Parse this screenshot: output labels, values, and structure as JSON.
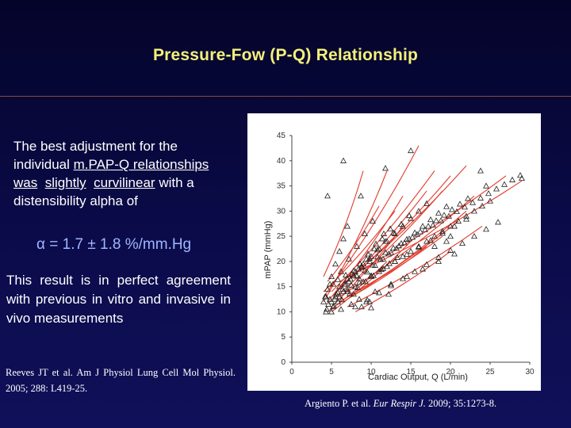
{
  "slide": {
    "title": "Pressure-Fow (P-Q) Relationship",
    "para1": {
      "l1": "The best adjustment for the",
      "l2a": "individual ",
      "l2b": "m.PAP-Q relationships",
      "l3a": "was",
      "l3b": "slightly",
      "l3c": "curvilinear",
      "l3d": " with a",
      "l4": "distensibility alpha of"
    },
    "alpha_formula": "α = 1.7 ± 1.8 %/mm.Hg",
    "para2": "This result is in perfect agreement with previous in vitro and invasive in vivo measurements",
    "ref_left": "Reeves JT et al. Am J Physiol Lung Cell Mol Physiol. 2005; 288: L419-25.",
    "ref_right_a": "Argiento P. et al. ",
    "ref_right_journal": "Eur Respir J.",
    "ref_right_b": " 2009; 35:1273-8."
  },
  "colors": {
    "title": "#f4f07a",
    "alpha": "#9fb6ff",
    "line": "#e23a2a",
    "marker": "#222222"
  },
  "chart_data": {
    "type": "scatter",
    "xlabel": "Cardiac Output, Q (L/min)",
    "ylabel": "mPAP (mmHg)",
    "xlim": [
      0,
      30
    ],
    "ylim": [
      0,
      45
    ],
    "xticks": [
      "0",
      "5",
      "10",
      "15",
      "20",
      "25",
      "30"
    ],
    "yticks": [
      "0",
      "5",
      "10",
      "15",
      "20",
      "25",
      "30",
      "35",
      "40",
      "45"
    ],
    "marker": "open-triangle",
    "fit_lines": [
      {
        "x": [
          4.0,
          12.0
        ],
        "y": [
          12,
          38
        ]
      },
      {
        "x": [
          4.0,
          16.0
        ],
        "y": [
          13,
          43
        ]
      },
      {
        "x": [
          4.5,
          14.0
        ],
        "y": [
          12,
          33
        ]
      },
      {
        "x": [
          4.5,
          11.0
        ],
        "y": [
          16,
          31
        ]
      },
      {
        "x": [
          4.0,
          13.0
        ],
        "y": [
          14,
          30
        ]
      },
      {
        "x": [
          5.0,
          18.0
        ],
        "y": [
          14,
          38
        ]
      },
      {
        "x": [
          5.0,
          17.0
        ],
        "y": [
          13,
          34
        ]
      },
      {
        "x": [
          4.0,
          9.0
        ],
        "y": [
          17,
          38
        ]
      },
      {
        "x": [
          5.0,
          14.0
        ],
        "y": [
          11,
          27
        ]
      },
      {
        "x": [
          5.5,
          20.0
        ],
        "y": [
          14,
          37
        ]
      },
      {
        "x": [
          5.5,
          19.0
        ],
        "y": [
          13,
          34
        ]
      },
      {
        "x": [
          6.0,
          22.0
        ],
        "y": [
          15,
          39
        ]
      },
      {
        "x": [
          6.0,
          23.0
        ],
        "y": [
          13,
          33
        ]
      },
      {
        "x": [
          6.0,
          27.0
        ],
        "y": [
          16,
          37
        ]
      },
      {
        "x": [
          6.0,
          21.0
        ],
        "y": [
          12,
          28
        ]
      },
      {
        "x": [
          6.5,
          22.0
        ],
        "y": [
          12,
          30
        ]
      },
      {
        "x": [
          7.0,
          29.0
        ],
        "y": [
          17,
          36
        ]
      },
      {
        "x": [
          7.0,
          24.0
        ],
        "y": [
          11,
          27
        ]
      },
      {
        "x": [
          8.0,
          20.0
        ],
        "y": [
          10,
          22
        ]
      },
      {
        "x": [
          4.5,
          12.0
        ],
        "y": [
          10,
          20
        ]
      },
      {
        "x": [
          5.0,
          15.0
        ],
        "y": [
          10,
          24
        ]
      },
      {
        "x": [
          7.5,
          17.0
        ],
        "y": [
          13,
          23
        ]
      },
      {
        "x": [
          8.0,
          19.0
        ],
        "y": [
          14,
          25
        ]
      }
    ],
    "points_x": [
      4.0,
      4.5,
      5.0,
      5.5,
      6.0,
      6.5,
      7.0,
      4.2,
      5.2,
      6.2,
      7.2,
      8.2,
      9.2,
      10.2,
      4.6,
      5.6,
      6.6,
      7.6,
      8.6,
      9.6,
      10.6,
      11.6,
      4.4,
      5.4,
      6.4,
      7.4,
      8.4,
      9.4,
      10.4,
      11.4,
      12.4,
      5.8,
      6.8,
      7.8,
      8.8,
      9.8,
      10.8,
      11.8,
      12.8,
      13.8,
      14.8,
      6.0,
      7.0,
      8.0,
      9.0,
      10.0,
      11.0,
      12.0,
      13.0,
      14.0,
      15.0,
      16.0,
      17.0,
      6.5,
      7.5,
      8.5,
      9.5,
      10.5,
      11.5,
      12.5,
      13.5,
      14.5,
      15.5,
      16.5,
      17.5,
      18.5,
      19.5,
      7.2,
      8.2,
      9.2,
      10.2,
      11.2,
      12.2,
      13.2,
      14.2,
      15.2,
      16.2,
      17.2,
      18.2,
      19.2,
      20.2,
      21.2,
      22.2,
      5.0,
      6.0,
      7.0,
      8.0,
      9.0,
      10.0,
      11.0,
      12.0,
      13.0,
      14.0,
      15.0,
      16.0,
      17.0,
      18.0,
      19.0,
      20.0,
      21.0,
      22.0,
      23.0,
      24.0,
      25.0,
      4.8,
      5.8,
      6.8,
      7.8,
      8.8,
      9.8,
      10.8,
      11.8,
      12.8,
      13.8,
      14.8,
      15.8,
      16.8,
      17.8,
      18.8,
      19.8,
      20.8,
      21.8,
      22.8,
      23.8,
      24.8,
      25.8,
      26.8,
      27.8,
      28.8,
      8.0,
      9.5,
      11.0,
      12.5,
      14.0,
      15.5,
      17.0,
      18.5,
      20.0,
      21.5,
      23.0,
      24.5,
      26.0,
      4.3,
      5.3,
      6.3,
      7.3,
      8.3,
      9.3,
      10.3,
      11.3,
      12.3,
      13.3,
      5.5,
      7.0,
      8.5,
      10.0,
      11.5,
      13.0,
      14.5,
      16.0,
      17.5,
      19.0,
      20.5,
      22.0,
      8.5,
      10.5,
      12.5,
      14.5,
      16.5,
      18.5,
      20.5,
      15.0,
      4.5,
      8.7,
      23.8,
      6.5,
      11.8,
      29.0,
      24.5,
      19.5,
      5.2,
      5.0,
      4.3,
      9.4,
      10.0,
      6.2,
      7.5,
      8.8,
      12.2,
      4.8,
      18.0,
      20.0,
      5.8,
      7.8,
      9.8
    ],
    "points_y": [
      12.0,
      14.5,
      17.0,
      19.5,
      22.0,
      24.5,
      27.0,
      13.0,
      15.5,
      18.0,
      20.5,
      23.0,
      25.5,
      28.0,
      11.5,
      13.5,
      15.5,
      17.5,
      19.5,
      21.5,
      23.5,
      25.5,
      10.5,
      12.5,
      14.5,
      16.5,
      18.5,
      20.5,
      22.5,
      24.5,
      26.5,
      13.8,
      15.5,
      17.2,
      18.9,
      20.6,
      22.3,
      24.0,
      25.7,
      27.4,
      29.1,
      15.0,
      16.5,
      18.0,
      19.5,
      21.0,
      22.5,
      24.0,
      25.5,
      27.0,
      28.5,
      30.0,
      31.5,
      14.0,
      15.3,
      16.6,
      17.9,
      19.2,
      20.5,
      21.8,
      23.1,
      24.4,
      25.7,
      27.0,
      28.3,
      29.6,
      30.9,
      16.0,
      17.1,
      18.2,
      19.3,
      20.4,
      21.5,
      22.6,
      23.7,
      24.8,
      25.9,
      27.0,
      28.1,
      29.2,
      30.3,
      31.4,
      32.5,
      12.0,
      13.0,
      14.0,
      15.0,
      16.0,
      17.0,
      18.0,
      19.0,
      20.0,
      21.0,
      22.0,
      23.0,
      24.0,
      25.0,
      26.0,
      27.0,
      28.0,
      29.0,
      30.0,
      31.0,
      32.0,
      15.5,
      16.4,
      17.3,
      18.2,
      19.1,
      20.0,
      20.9,
      21.8,
      22.7,
      23.6,
      24.5,
      25.4,
      26.3,
      27.2,
      28.1,
      29.0,
      29.9,
      30.8,
      31.7,
      32.6,
      33.5,
      34.4,
      35.3,
      36.2,
      37.1,
      11.0,
      12.4,
      13.8,
      15.2,
      16.6,
      18.0,
      19.4,
      20.8,
      22.2,
      23.6,
      25.0,
      26.4,
      27.8,
      10.0,
      11.2,
      12.4,
      13.6,
      14.8,
      16.0,
      17.2,
      18.4,
      19.6,
      20.8,
      13.0,
      14.4,
      15.8,
      17.2,
      18.6,
      20.0,
      21.4,
      22.8,
      24.2,
      25.6,
      27.0,
      28.4,
      12.5,
      14.0,
      15.5,
      17.0,
      18.5,
      20.0,
      21.5,
      42.0,
      33.0,
      33.0,
      38.0,
      40.0,
      38.5,
      36.5,
      35.0,
      24.0,
      11.0,
      10.0,
      13.0,
      12.0,
      10.8,
      10.5,
      11.5,
      11.0,
      13.5,
      12.5,
      23.0,
      25.0,
      12.0,
      13.5,
      12.0
    ]
  }
}
